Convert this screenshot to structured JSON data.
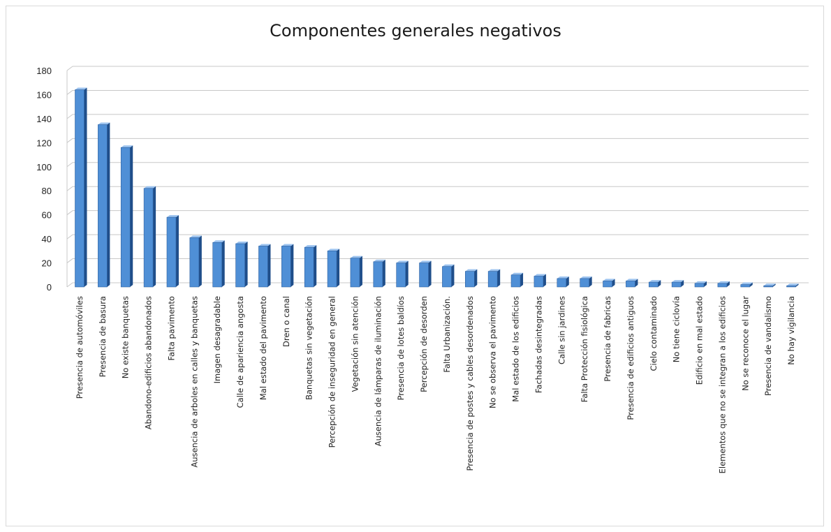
{
  "chart_data": {
    "type": "bar",
    "title": "Componentes generales negativos",
    "xlabel": "",
    "ylabel": "",
    "ylim": [
      0,
      180
    ],
    "yticks": [
      0,
      20,
      40,
      60,
      80,
      100,
      120,
      140,
      160,
      180
    ],
    "grid": true,
    "categories": [
      "Presencia de automóviles",
      "Presencia de basura",
      "No existe banquetas",
      "Abandono-edificios abandonados",
      "Falta pavimento",
      "Ausencia de arboles en calles y banquetas",
      "Imagen desagradable",
      "Calle de apariencia angosta",
      "Mal estado del pavimento",
      "Dren o canal",
      "Banquetas sin vegetación",
      "Percepción de inseguridad en general",
      "Vegetación sin atención",
      "Ausencia de lámparas de iluminación",
      "Presencia de lotes baldíos",
      "Percepción de desorden",
      "Falta Urbanización.",
      "Presencia de postes y cables desordenados",
      "No se observa el pavimento",
      "Mal estado de los edificios",
      "Fachadas desintegradas",
      "Calle sin jardines",
      "Falta Protección fisiológica",
      "Presencia de fabricas",
      "Presencia de edificios antiguos",
      "Cielo contaminado",
      "No tiene ciclovía",
      "Edificio en mal estado",
      "Elementos que no se integran a los edificios",
      "No se reconoce el lugar",
      "Presencia de vandalismo",
      "No hay vigilancia"
    ],
    "values": [
      164,
      135,
      116,
      82,
      58,
      41,
      37,
      36,
      34,
      34,
      33,
      30,
      24,
      21,
      20,
      20,
      17,
      13,
      13,
      10,
      9,
      7,
      7,
      5,
      5,
      4,
      4,
      3,
      3,
      2,
      1,
      1
    ],
    "colors": {
      "bar_front": "#4f8fd6",
      "bar_side": "#1f4e8a",
      "bar_top": "#9cc3ef",
      "grid": "#c8c8c8"
    }
  }
}
